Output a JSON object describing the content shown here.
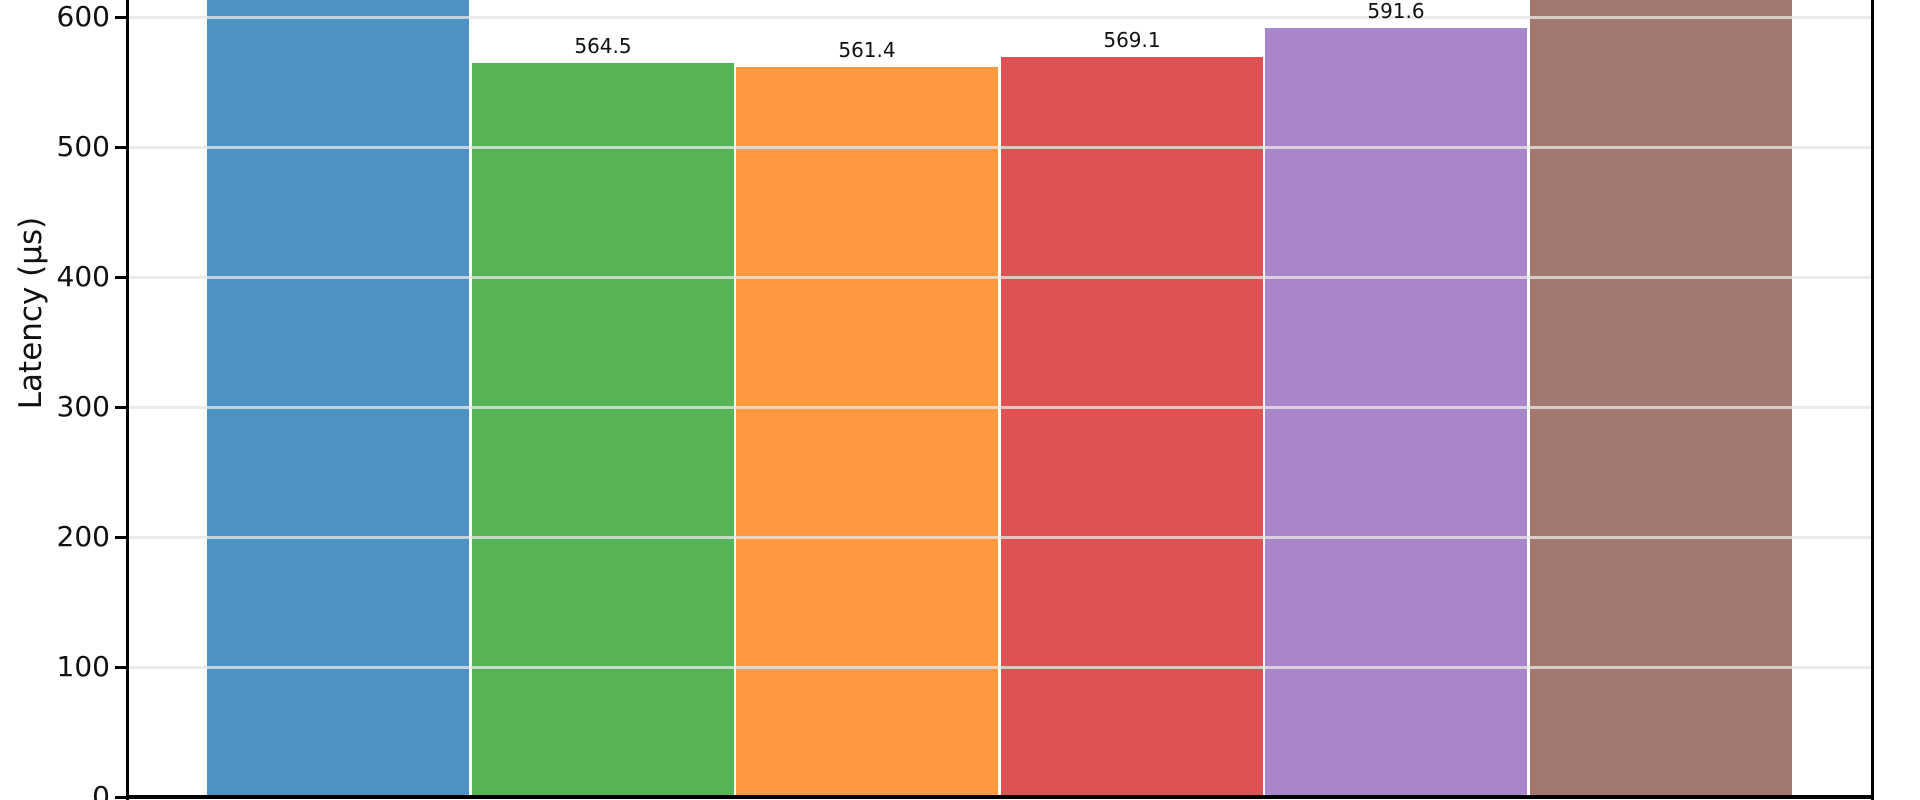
{
  "chart_data": {
    "type": "bar",
    "title": "",
    "xlabel": "",
    "ylabel": "Latency (μs)",
    "y_ticks": [
      0,
      100,
      200,
      300,
      400,
      500,
      600
    ],
    "ylim_visible": [
      0,
      613
    ],
    "grid": true,
    "x_tick_labels_visible": false,
    "view_cropped": {
      "top": true,
      "bottom": true
    },
    "axis_color": "#000000",
    "grid_color": "#ECECEC",
    "text_color": "#111111",
    "bars": [
      {
        "index": 1,
        "color": "#4C92C3",
        "value": null,
        "label": "",
        "cropped_top": true
      },
      {
        "index": 2,
        "color": "#56B356",
        "value": 564.5,
        "label": "564.5",
        "cropped_top": false
      },
      {
        "index": 3,
        "color": "#FF983E",
        "value": 561.4,
        "label": "561.4",
        "cropped_top": false
      },
      {
        "index": 4,
        "color": "#DE5253",
        "value": 569.1,
        "label": "569.1",
        "cropped_top": false
      },
      {
        "index": 5,
        "color": "#A985CA",
        "value": 591.6,
        "label": "591.6",
        "cropped_top": false
      },
      {
        "index": 6,
        "color": "#A37870",
        "value": null,
        "label": "",
        "cropped_top": true
      }
    ]
  }
}
